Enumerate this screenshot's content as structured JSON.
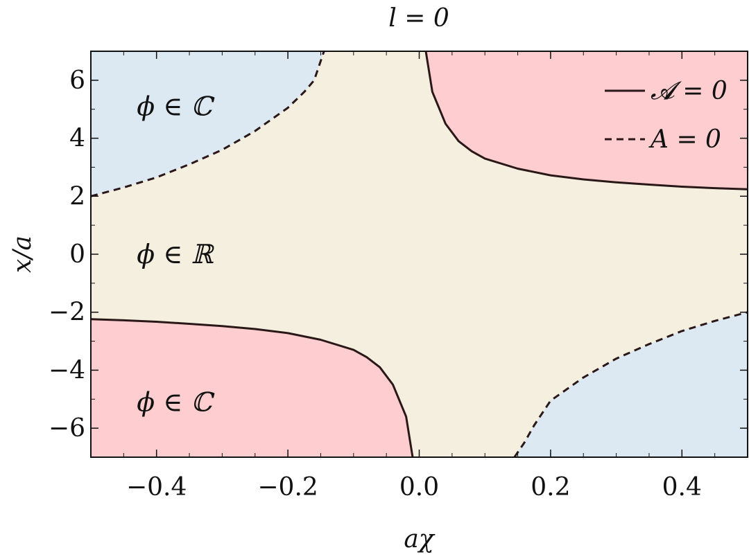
{
  "chart_data": {
    "type": "area",
    "title": "l = 0",
    "xlabel": "aχ",
    "ylabel": "x/a",
    "xlim": [
      -0.5,
      0.5
    ],
    "ylim": [
      -7,
      7
    ],
    "xticks": [
      "−0.4",
      "−0.2",
      "0.0",
      "0.2",
      "0.4"
    ],
    "xtick_values": [
      -0.4,
      -0.2,
      0.0,
      0.2,
      0.4
    ],
    "yticks": [
      "6",
      "4",
      "2",
      "0",
      "−2",
      "−4",
      "−6"
    ],
    "ytick_values": [
      6,
      4,
      2,
      0,
      -2,
      -4,
      -6
    ],
    "legend": {
      "position": "top-right",
      "entries": [
        {
          "label": "𝓐 = 0",
          "style": "solid"
        },
        {
          "label": "A = 0",
          "style": "dashed"
        }
      ]
    },
    "curves": [
      {
        "style": "solid",
        "branch": "upper-right",
        "points": [
          [
            0.01,
            7.0
          ],
          [
            0.02,
            5.6
          ],
          [
            0.04,
            4.5
          ],
          [
            0.06,
            3.9
          ],
          [
            0.08,
            3.55
          ],
          [
            0.1,
            3.3
          ],
          [
            0.15,
            2.95
          ],
          [
            0.2,
            2.72
          ],
          [
            0.25,
            2.58
          ],
          [
            0.3,
            2.48
          ],
          [
            0.35,
            2.4
          ],
          [
            0.4,
            2.33
          ],
          [
            0.45,
            2.28
          ],
          [
            0.5,
            2.24
          ]
        ]
      },
      {
        "style": "solid",
        "branch": "lower-left",
        "points": [
          [
            -0.5,
            -2.24
          ],
          [
            -0.45,
            -2.28
          ],
          [
            -0.4,
            -2.33
          ],
          [
            -0.35,
            -2.4
          ],
          [
            -0.3,
            -2.48
          ],
          [
            -0.25,
            -2.58
          ],
          [
            -0.2,
            -2.72
          ],
          [
            -0.15,
            -2.95
          ],
          [
            -0.1,
            -3.3
          ],
          [
            -0.08,
            -3.55
          ],
          [
            -0.06,
            -3.9
          ],
          [
            -0.04,
            -4.5
          ],
          [
            -0.02,
            -5.6
          ],
          [
            -0.01,
            -7.0
          ]
        ]
      },
      {
        "style": "dashed",
        "branch": "upper-left",
        "points": [
          [
            -0.5,
            2.0
          ],
          [
            -0.45,
            2.3
          ],
          [
            -0.4,
            2.65
          ],
          [
            -0.35,
            3.1
          ],
          [
            -0.3,
            3.6
          ],
          [
            -0.25,
            4.25
          ],
          [
            -0.2,
            5.05
          ],
          [
            -0.175,
            5.6
          ],
          [
            -0.16,
            6.0
          ],
          [
            -0.145,
            7.0
          ]
        ]
      },
      {
        "style": "dashed",
        "branch": "lower-right",
        "points": [
          [
            0.145,
            -7.0
          ],
          [
            0.16,
            -6.5
          ],
          [
            0.175,
            -5.9
          ],
          [
            0.2,
            -5.05
          ],
          [
            0.25,
            -4.25
          ],
          [
            0.3,
            -3.6
          ],
          [
            0.35,
            -3.1
          ],
          [
            0.4,
            -2.65
          ],
          [
            0.45,
            -2.3
          ],
          [
            0.5,
            -2.0
          ]
        ]
      }
    ],
    "regions": [
      {
        "label": "ϕ ∈ ℂ",
        "color": "#dce8f2",
        "at": [
          -0.43,
          5.1
        ]
      },
      {
        "label": "ϕ ∈ ℝ",
        "color": "#f5efe0",
        "at": [
          -0.43,
          0.0
        ]
      },
      {
        "label": "ϕ ∈ ℂ",
        "color": "#fdcdcf",
        "at": [
          -0.43,
          -5.1
        ]
      }
    ],
    "colors": {
      "background": "#f5efe0",
      "complex_A": "#dce8f2",
      "complex_calA": "#fdcdcf",
      "curve": "#2a1818"
    }
  }
}
